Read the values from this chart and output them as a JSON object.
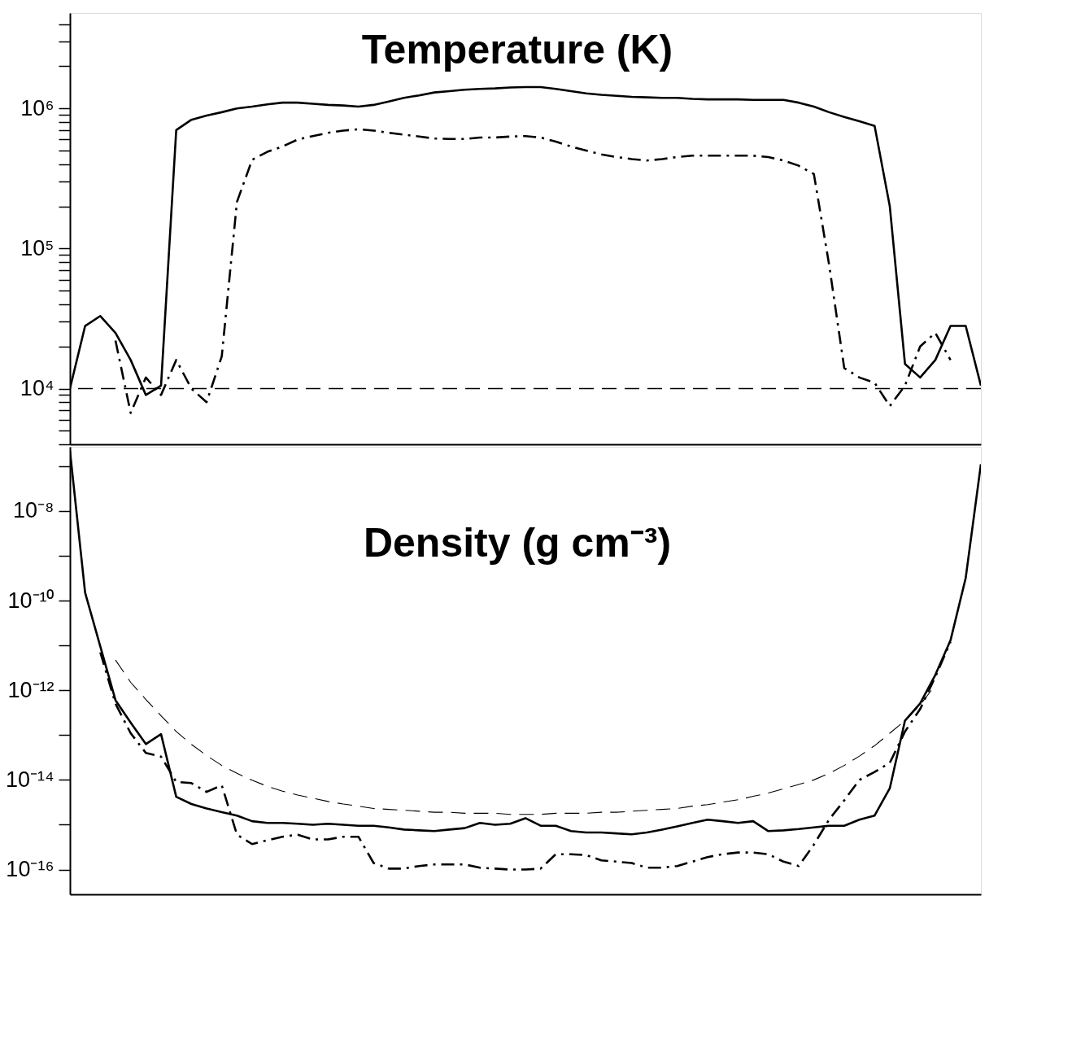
{
  "chart_data": [
    {
      "type": "line",
      "title": "Temperature (K)",
      "log": true,
      "grid": false,
      "tick_labels": "y",
      "categories": [
        null,
        null,
        null,
        null,
        null,
        null,
        null,
        null,
        null,
        null,
        null,
        null,
        null,
        null,
        null,
        null,
        null,
        null,
        null,
        null,
        null,
        null,
        null,
        null,
        null,
        null,
        null,
        null,
        null,
        null,
        null,
        null,
        null,
        null,
        null,
        null,
        null,
        null,
        null,
        null,
        null,
        null,
        null,
        null,
        null,
        null,
        null,
        null,
        null,
        null,
        null,
        null,
        null,
        null,
        null,
        null,
        null,
        null,
        null,
        null,
        null
      ],
      "ylim": [
        4000,
        4800000
      ],
      "yticks": [
        {
          "value": 4000,
          "label": null
        },
        {
          "value": 5000,
          "label": null
        },
        {
          "value": 6000,
          "label": null
        },
        {
          "value": 7000,
          "label": null
        },
        {
          "value": 8000,
          "label": null
        },
        {
          "value": 9000,
          "label": null
        },
        {
          "value": 10000,
          "label": "10⁴"
        },
        {
          "value": 20000,
          "label": null
        },
        {
          "value": 30000,
          "label": null
        },
        {
          "value": 40000,
          "label": null
        },
        {
          "value": 50000,
          "label": null
        },
        {
          "value": 60000,
          "label": null
        },
        {
          "value": 70000,
          "label": null
        },
        {
          "value": 80000,
          "label": null
        },
        {
          "value": 90000,
          "label": null
        },
        {
          "value": 100000,
          "label": "10⁵"
        },
        {
          "value": 200000,
          "label": null
        },
        {
          "value": 300000,
          "label": null
        },
        {
          "value": 400000,
          "label": null
        },
        {
          "value": 500000,
          "label": null
        },
        {
          "value": 600000,
          "label": null
        },
        {
          "value": 700000,
          "label": null
        },
        {
          "value": 800000,
          "label": null
        },
        {
          "value": 900000,
          "label": null
        },
        {
          "value": 1000000,
          "label": "10⁶"
        },
        {
          "value": 2000000,
          "label": null
        },
        {
          "value": 3000000,
          "label": null
        },
        {
          "value": 4000000,
          "label": null
        }
      ],
      "ref_lines": [
        {
          "axis": "y",
          "value": 10000,
          "color": "#000000",
          "line_style": "dashed"
        }
      ],
      "series": [
        {
          "color": "#000000",
          "line_style": "solid",
          "values": [
            10000,
            28000,
            33000,
            25000,
            16000,
            9000,
            10500,
            700000,
            830000,
            890000,
            940000,
            1000000,
            1030000,
            1070000,
            1100000,
            1100000,
            1080000,
            1060000,
            1050000,
            1030000,
            1060000,
            1120000,
            1190000,
            1240000,
            1300000,
            1330000,
            1360000,
            1380000,
            1390000,
            1410000,
            1420000,
            1420000,
            1380000,
            1330000,
            1280000,
            1250000,
            1230000,
            1210000,
            1200000,
            1190000,
            1190000,
            1170000,
            1160000,
            1160000,
            1160000,
            1150000,
            1150000,
            1150000,
            1100000,
            1030000,
            940000,
            870000,
            810000,
            750000,
            200000,
            15000,
            12000,
            16000,
            28000,
            28000,
            10500
          ]
        },
        {
          "color": "#000000",
          "line_style": "dashdot",
          "values": [
            null,
            null,
            null,
            22000,
            6700,
            12000,
            9000,
            16000,
            10000,
            8000,
            17000,
            215000,
            430000,
            490000,
            535000,
            600000,
            635000,
            670000,
            695000,
            710000,
            695000,
            670000,
            650000,
            630000,
            610000,
            605000,
            605000,
            620000,
            620000,
            630000,
            635000,
            620000,
            580000,
            535000,
            500000,
            470000,
            450000,
            435000,
            425000,
            435000,
            450000,
            460000,
            460000,
            460000,
            460000,
            460000,
            450000,
            425000,
            390000,
            340000,
            77000,
            14000,
            12000,
            11000,
            7500,
            10500,
            20000,
            25000,
            16000,
            null,
            null
          ]
        }
      ]
    },
    {
      "type": "line",
      "title": "Density (g cm⁻³)",
      "log": true,
      "grid": false,
      "tick_labels": "y",
      "categories": [
        null,
        null,
        null,
        null,
        null,
        null,
        null,
        null,
        null,
        null,
        null,
        null,
        null,
        null,
        null,
        null,
        null,
        null,
        null,
        null,
        null,
        null,
        null,
        null,
        null,
        null,
        null,
        null,
        null,
        null,
        null,
        null,
        null,
        null,
        null,
        null,
        null,
        null,
        null,
        null,
        null,
        null,
        null,
        null,
        null,
        null,
        null,
        null,
        null,
        null,
        null,
        null,
        null,
        null,
        null,
        null,
        null,
        null,
        null,
        null,
        null
      ],
      "ylim": [
        2.8e-17,
        2.7e-07
      ],
      "yticks": [
        {
          "value": 1e-07,
          "label": null
        },
        {
          "value": 1e-08,
          "label": "10⁻⁸"
        },
        {
          "value": 1e-09,
          "label": null
        },
        {
          "value": 1e-10,
          "label": "10⁻¹⁰"
        },
        {
          "value": 1e-11,
          "label": null
        },
        {
          "value": 1e-12,
          "label": "10⁻¹²"
        },
        {
          "value": 1e-13,
          "label": null
        },
        {
          "value": 1e-14,
          "label": "10⁻¹⁴"
        },
        {
          "value": 1e-15,
          "label": null
        },
        {
          "value": 1e-16,
          "label": "10⁻¹⁶"
        }
      ],
      "series": [
        {
          "color": "#000000",
          "line_style": "solid",
          "values": [
            2.2e-07,
            1.5e-10,
            9.5e-12,
            6e-13,
            1.9e-13,
            6.3e-14,
            1.05e-13,
            4.2e-15,
            2.9e-15,
            2.3e-15,
            1.9e-15,
            1.6e-15,
            1.2e-15,
            1.1e-15,
            1.1e-15,
            1.05e-15,
            1e-15,
            1.05e-15,
            1e-15,
            9.5e-16,
            9.5e-16,
            8.7e-16,
            7.8e-16,
            7.5e-16,
            7.2e-16,
            7.8e-16,
            8.4e-16,
            1.1e-15,
            1e-15,
            1.05e-15,
            1.4e-15,
            9.5e-16,
            9.5e-16,
            7.2e-16,
            6.7e-16,
            6.7e-16,
            6.4e-16,
            6.1e-16,
            6.7e-16,
            7.8e-16,
            9.2e-16,
            1.1e-15,
            1.3e-15,
            1.2e-15,
            1.1e-15,
            1.2e-15,
            7.2e-16,
            7.5e-16,
            8e-16,
            8.7e-16,
            9.5e-16,
            9.5e-16,
            1.3e-15,
            1.6e-15,
            6.5e-15,
            2.1e-13,
            5.1e-13,
            2.2e-12,
            1.3e-11,
            3.2e-10,
            1.1e-07
          ]
        },
        {
          "color": "#000000",
          "line_style": "dashdot",
          "values": [
            null,
            null,
            7e-12,
            5e-13,
            1.1e-13,
            4e-14,
            3.3e-14,
            9e-15,
            8.5e-15,
            5.4e-15,
            7.6e-15,
            6e-16,
            3.7e-16,
            4.5e-16,
            5.4e-16,
            6e-16,
            4.7e-16,
            4.7e-16,
            5.4e-16,
            5.4e-16,
            1.4e-16,
            1.05e-16,
            1.05e-16,
            1.2e-16,
            1.3e-16,
            1.3e-16,
            1.3e-16,
            1.1e-16,
            1.05e-16,
            1e-16,
            1e-16,
            1.05e-16,
            2.2e-16,
            2.2e-16,
            2.1e-16,
            1.6e-16,
            1.5e-16,
            1.4e-16,
            1.1e-16,
            1.1e-16,
            1.2e-16,
            1.5e-16,
            1.9e-16,
            2.2e-16,
            2.4e-16,
            2.4e-16,
            2.2e-16,
            1.5e-16,
            1.2e-16,
            3.6e-16,
            1.3e-15,
            3.5e-15,
            1e-14,
            1.5e-14,
            2.4e-14,
            1.2e-13,
            3.8e-13,
            2e-12,
            1.2e-11,
            null,
            null
          ]
        },
        {
          "color": "#000000",
          "line_style": "dashed",
          "values": [
            null,
            null,
            null,
            4.7e-12,
            1.5e-12,
            6.2e-13,
            2.7e-13,
            1.2e-13,
            6.2e-14,
            3.5e-14,
            2.1e-14,
            1.4e-14,
            9.8e-15,
            7.2e-15,
            5.6e-15,
            4.6e-15,
            3.9e-15,
            3.3e-15,
            2.9e-15,
            2.6e-15,
            2.3e-15,
            2.2e-15,
            2.1e-15,
            2e-15,
            1.9e-15,
            1.9e-15,
            1.8e-15,
            1.8e-15,
            1.8e-15,
            1.7e-15,
            1.7e-15,
            1.7e-15,
            1.8e-15,
            1.8e-15,
            1.8e-15,
            1.9e-15,
            1.9e-15,
            2e-15,
            2.1e-15,
            2.2e-15,
            2.3e-15,
            2.6e-15,
            2.8e-15,
            3.2e-15,
            3.6e-15,
            4.3e-15,
            5.1e-15,
            6.3e-15,
            7.9e-15,
            1e-14,
            1.4e-14,
            2.1e-14,
            3.4e-14,
            5.8e-14,
            1.1e-13,
            2.1e-13,
            4.7e-13,
            1.3e-12,
            null,
            null,
            null
          ]
        }
      ]
    }
  ]
}
